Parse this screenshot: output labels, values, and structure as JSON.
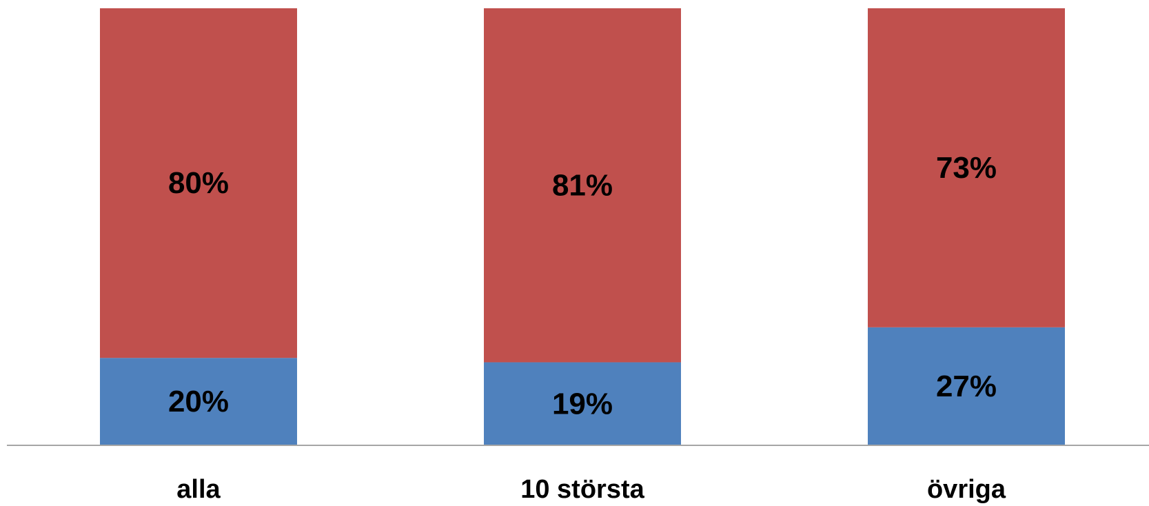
{
  "chart_data": {
    "type": "bar",
    "stacked": true,
    "percent_stacked": true,
    "categories": [
      "alla",
      "10 största",
      "övriga"
    ],
    "series": [
      {
        "values": [
          20,
          19,
          27
        ],
        "labels": [
          "20%",
          "19%",
          "27%"
        ],
        "color": "#4f81bd"
      },
      {
        "values": [
          80,
          81,
          73
        ],
        "labels": [
          "80%",
          "81%",
          "73%"
        ],
        "color": "#c0504d"
      }
    ],
    "ylim": [
      0,
      100
    ],
    "grid": false,
    "legend": "none",
    "axis_color": "#a6a6a6"
  }
}
